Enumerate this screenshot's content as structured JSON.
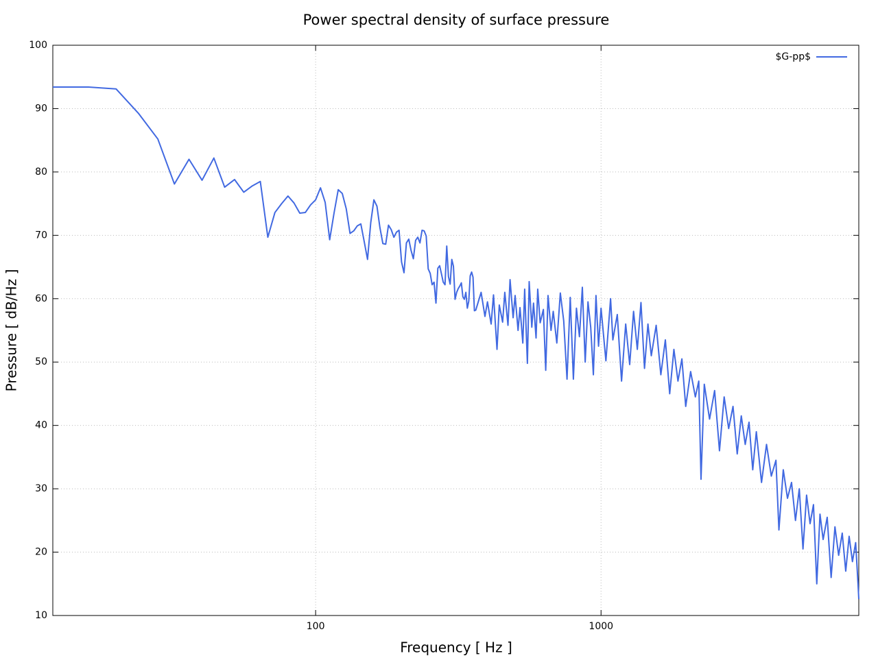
{
  "chart_data": {
    "type": "line",
    "title": "Power spectral density of surface pressure",
    "xlabel": "Frequency [ Hz ]",
    "ylabel": "Pressure [ dB/Hz ]",
    "xscale": "log",
    "xlim": [
      12,
      8000
    ],
    "ylim": [
      10,
      100
    ],
    "xticks": [
      100,
      1000
    ],
    "yticks": [
      10,
      20,
      30,
      40,
      50,
      60,
      70,
      80,
      90,
      100
    ],
    "grid": true,
    "legend": "top-right",
    "x": [
      12,
      16,
      20,
      24,
      28,
      32,
      36,
      40,
      44,
      48,
      52,
      56,
      60,
      64,
      68,
      72,
      76,
      80,
      84,
      88,
      92,
      96,
      100,
      104,
      108,
      112,
      116,
      120,
      124,
      128,
      132,
      136,
      140,
      144,
      148,
      152,
      156,
      160,
      164,
      168,
      172,
      176,
      180,
      184,
      188,
      192,
      196,
      200,
      204,
      208,
      212,
      216,
      220,
      224,
      228,
      232,
      236,
      240,
      244,
      248,
      252,
      256,
      260,
      264,
      268,
      272,
      276,
      280,
      284,
      288,
      292,
      296,
      300,
      304,
      308,
      312,
      316,
      320,
      324,
      328,
      332,
      336,
      340,
      344,
      348,
      352,
      356,
      360,
      364,
      380,
      392,
      400,
      412,
      420,
      432,
      440,
      452,
      460,
      472,
      480,
      492,
      500,
      512,
      520,
      532,
      540,
      552,
      560,
      572,
      580,
      592,
      600,
      612,
      628,
      640,
      652,
      668,
      680,
      700,
      720,
      740,
      760,
      780,
      800,
      820,
      840,
      860,
      880,
      900,
      920,
      940,
      960,
      980,
      1000,
      1040,
      1080,
      1100,
      1140,
      1180,
      1220,
      1260,
      1300,
      1340,
      1380,
      1420,
      1460,
      1500,
      1560,
      1620,
      1680,
      1740,
      1800,
      1860,
      1920,
      1980,
      2060,
      2140,
      2200,
      2240,
      2300,
      2400,
      2500,
      2600,
      2700,
      2800,
      2900,
      3000,
      3100,
      3200,
      3300,
      3400,
      3500,
      3650,
      3800,
      3950,
      4100,
      4200,
      4350,
      4500,
      4650,
      4800,
      4950,
      5100,
      5250,
      5400,
      5550,
      5700,
      5850,
      6000,
      6200,
      6400,
      6600,
      6800,
      7000,
      7200,
      7400,
      7600,
      7800,
      7950,
      8000
    ],
    "series": [
      {
        "name": "$G-pp$",
        "color": "#4169e1",
        "values": [
          93.4,
          93.4,
          93.1,
          89.2,
          85.2,
          78.1,
          82.0,
          78.7,
          82.2,
          77.6,
          78.8,
          76.8,
          77.8,
          78.5,
          69.7,
          73.6,
          75.0,
          76.2,
          75.1,
          73.5,
          73.6,
          74.8,
          75.6,
          77.5,
          75.2,
          69.3,
          73.5,
          77.2,
          76.6,
          74.2,
          70.3,
          70.7,
          71.5,
          71.8,
          69.0,
          66.2,
          72.0,
          75.6,
          74.6,
          71.2,
          68.7,
          68.6,
          71.6,
          70.9,
          69.7,
          70.5,
          70.8,
          65.8,
          64.1,
          68.8,
          69.4,
          67.6,
          66.3,
          69.2,
          69.7,
          68.8,
          70.8,
          70.7,
          69.9,
          64.7,
          64.0,
          62.2,
          62.6,
          59.3,
          64.8,
          65.2,
          63.9,
          62.6,
          62.2,
          68.3,
          63.5,
          62.3,
          66.2,
          65.1,
          59.9,
          61.0,
          61.6,
          62.0,
          62.5,
          60.3,
          59.9,
          61.0,
          58.5,
          59.6,
          63.6,
          64.2,
          63.4,
          58.1,
          58.2,
          61.0,
          57.2,
          59.5,
          56.0,
          60.6,
          52.0,
          59.0,
          56.3,
          61.0,
          55.8,
          63.0,
          57.0,
          60.5,
          55.0,
          58.6,
          53.0,
          61.5,
          49.8,
          62.7,
          55.5,
          59.3,
          53.8,
          61.5,
          56.2,
          58.3,
          48.7,
          60.5,
          55.0,
          58.0,
          53.0,
          60.9,
          56.5,
          47.3,
          60.2,
          47.3,
          58.5,
          54.0,
          61.8,
          50.0,
          59.5,
          55.5,
          48.0,
          60.5,
          52.5,
          58.5,
          50.2,
          60.0,
          53.5,
          57.5,
          47.0,
          56.0,
          49.6,
          58.0,
          52.0,
          59.4,
          49.0,
          56.0,
          51.0,
          55.8,
          48.0,
          53.5,
          45.0,
          52.0,
          47.0,
          50.5,
          43.0,
          48.5,
          44.5,
          47.0,
          31.5,
          46.5,
          41.0,
          45.5,
          36.0,
          44.5,
          39.5,
          43.0,
          35.5,
          41.5,
          37.0,
          40.5,
          33.0,
          39.0,
          31.0,
          37.0,
          32.0,
          34.5,
          23.5,
          33.0,
          28.5,
          31.0,
          25.0,
          30.0,
          20.5,
          29.0,
          24.5,
          27.5,
          15.0,
          26.0,
          22.0,
          25.5,
          16.0,
          24.0,
          19.5,
          23.0,
          17.0,
          22.5,
          18.5,
          21.5,
          15.0,
          12.6
        ]
      }
    ]
  }
}
